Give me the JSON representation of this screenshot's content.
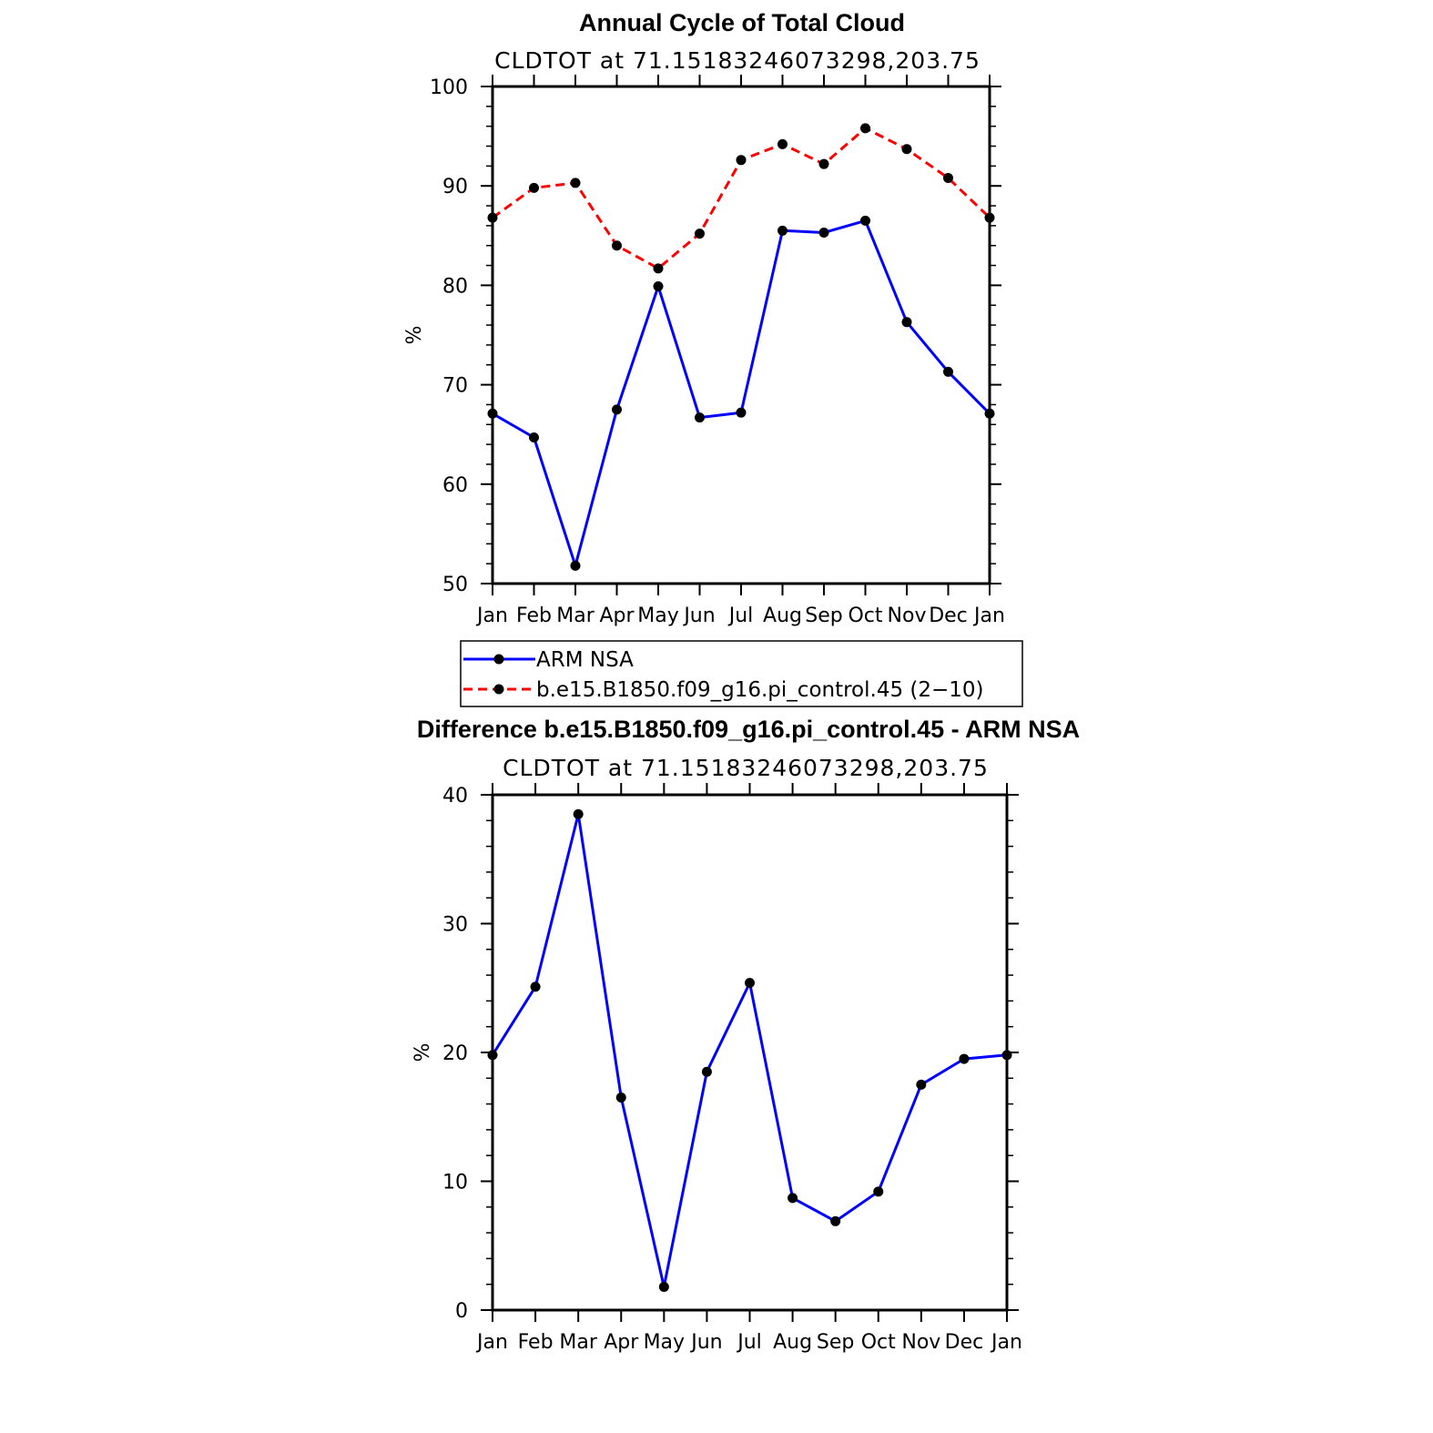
{
  "chart_data": [
    {
      "type": "line",
      "title": "Annual Cycle of Total Cloud",
      "subtitle": "CLDTOT at 71.15183246073298,203.75",
      "xlabel": "",
      "ylabel": "%",
      "categories": [
        "Jan",
        "Feb",
        "Mar",
        "Apr",
        "May",
        "Jun",
        "Jul",
        "Aug",
        "Sep",
        "Oct",
        "Nov",
        "Dec",
        "Jan"
      ],
      "ylim": [
        50,
        100
      ],
      "yticks": [
        50,
        60,
        70,
        80,
        90,
        100
      ],
      "series": [
        {
          "name": "ARM NSA",
          "color": "#0000ff",
          "dash": "solid",
          "values": [
            67.1,
            64.7,
            51.8,
            67.5,
            79.9,
            66.7,
            67.2,
            85.5,
            85.3,
            86.5,
            76.3,
            71.3,
            67.1
          ]
        },
        {
          "name": "b.e15.B1850.f09_g16.pi_control.45 (2−10)",
          "color": "#ff0000",
          "dash": "dashed",
          "values": [
            86.8,
            89.8,
            90.3,
            84.0,
            81.7,
            85.2,
            92.6,
            94.2,
            92.2,
            95.8,
            93.7,
            90.8,
            86.8
          ]
        }
      ],
      "legend": "below"
    },
    {
      "type": "line",
      "title": "Difference b.e15.B1850.f09_g16.pi_control.45 - ARM NSA",
      "subtitle": "CLDTOT at 71.15183246073298,203.75",
      "xlabel": "",
      "ylabel": "%",
      "categories": [
        "Jan",
        "Feb",
        "Mar",
        "Apr",
        "May",
        "Jun",
        "Jul",
        "Aug",
        "Sep",
        "Oct",
        "Nov",
        "Dec",
        "Jan"
      ],
      "ylim": [
        0,
        40
      ],
      "yticks": [
        0,
        10,
        20,
        30,
        40
      ],
      "series": [
        {
          "color": "#0000ff",
          "dash": "solid",
          "values": [
            19.8,
            25.1,
            38.5,
            16.5,
            1.8,
            18.5,
            25.4,
            8.7,
            6.9,
            9.2,
            17.5,
            19.5,
            19.8
          ]
        }
      ]
    }
  ]
}
